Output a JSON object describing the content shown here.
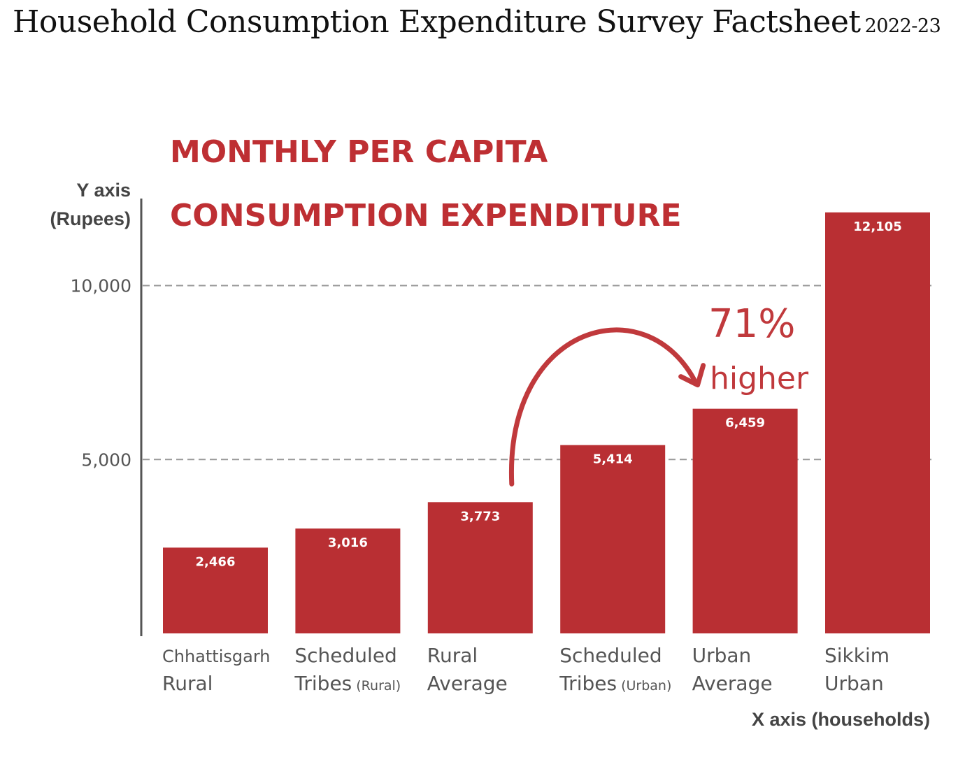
{
  "page": {
    "title": "Household Consumption Expenditure Survey Factsheet",
    "year": "2022-23"
  },
  "chart_data": {
    "type": "bar",
    "title_lines": [
      "MONTHLY PER CAPITA",
      "CONSUMPTION EXPENDITURE"
    ],
    "ylabel_lines": [
      "Y axis",
      "(Rupees)"
    ],
    "xlabel": "X axis (households)",
    "categories": [
      {
        "line1": "Chhattisgarh",
        "line2": "Rural",
        "line2_small": ""
      },
      {
        "line1": "Scheduled",
        "line2": "Tribes",
        "line2_small": "(Rural)"
      },
      {
        "line1": "Rural",
        "line2": "Average",
        "line2_small": ""
      },
      {
        "line1": "Scheduled",
        "line2": "Tribes",
        "line2_small": "(Urban)"
      },
      {
        "line1": "Urban",
        "line2": "Average",
        "line2_small": ""
      },
      {
        "line1": "Sikkim",
        "line2": "Urban",
        "line2_small": ""
      }
    ],
    "values": [
      2466,
      3016,
      3773,
      5414,
      6459,
      12105
    ],
    "value_labels": [
      "2,466",
      "3,016",
      "3,773",
      "5,414",
      "6,459",
      "12,105"
    ],
    "yticks": [
      5000,
      10000
    ],
    "ytick_labels": [
      "5,000",
      "10,000"
    ],
    "ylim": [
      0,
      12105
    ],
    "grid": "dashed horizontal at y ticks",
    "bar_color": "#b92f33",
    "annotation": {
      "text_big": "71%",
      "text_small": "higher",
      "from_category": 2,
      "to_category": 4,
      "color": "#c0393c"
    }
  }
}
